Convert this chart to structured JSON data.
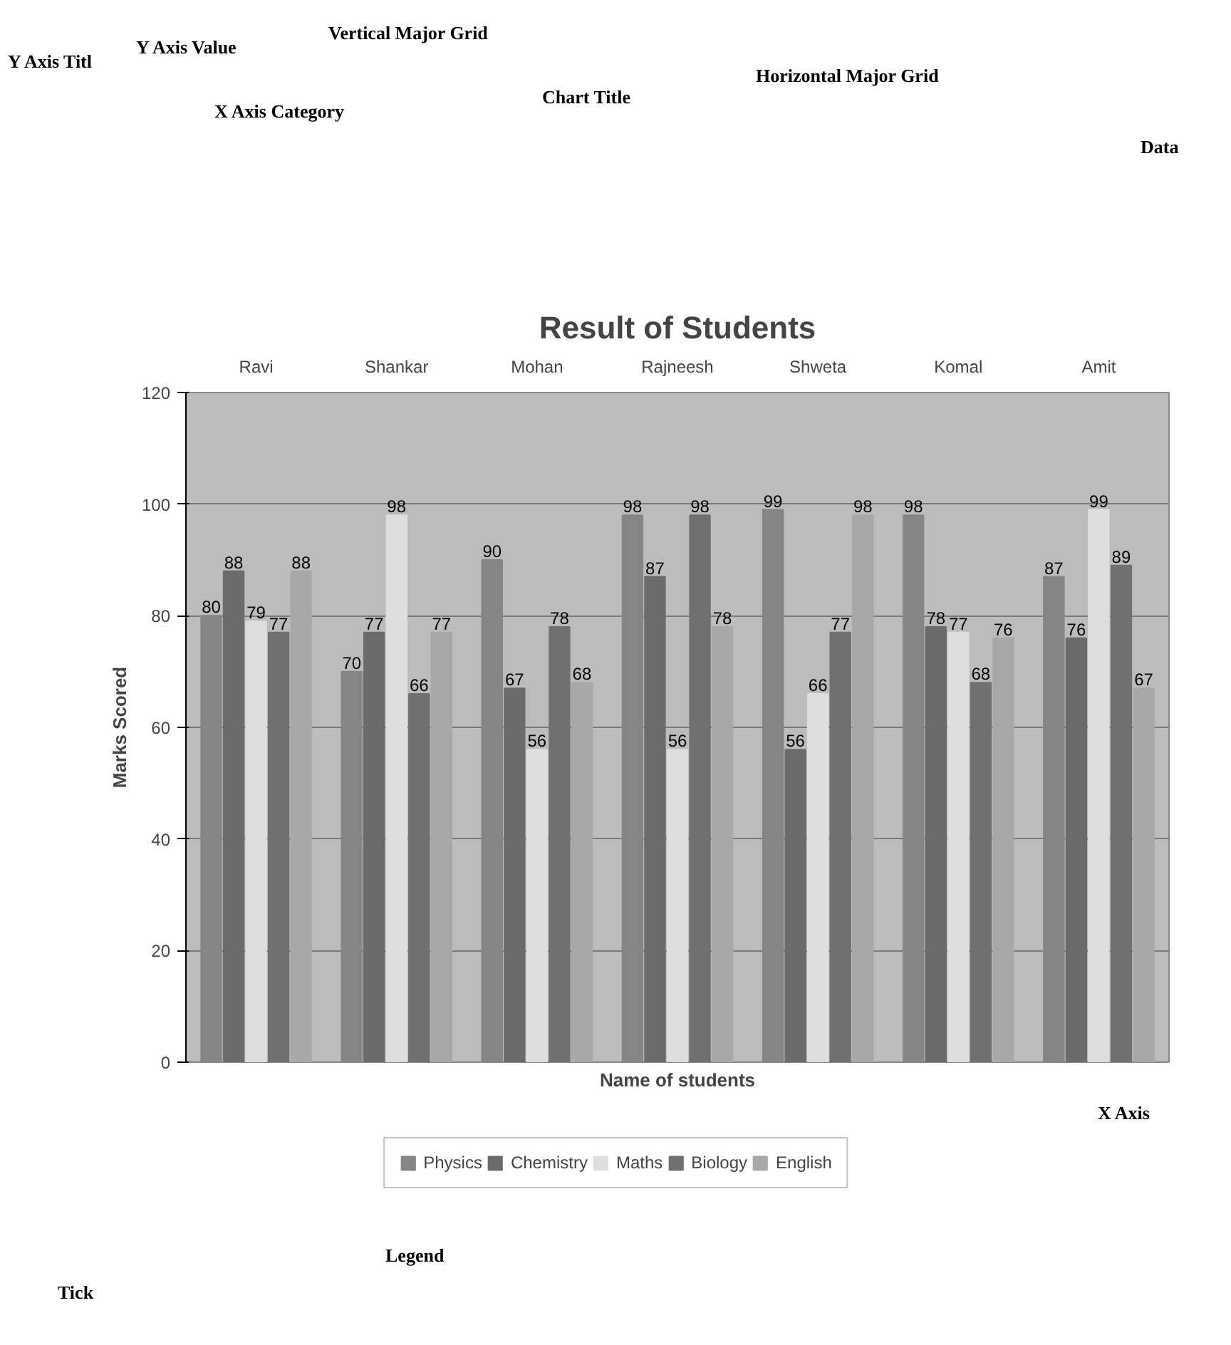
{
  "chart_data": {
    "type": "bar",
    "title": "Result of Students",
    "xlabel": "Name of students",
    "ylabel": "Marks Scored",
    "categories": [
      "Ravi",
      "Shankar",
      "Mohan",
      "Rajneesh",
      "Shweta",
      "Komal",
      "Amit"
    ],
    "series": [
      {
        "name": "Physics",
        "color": "#858585",
        "values": [
          80,
          70,
          90,
          98,
          99,
          98,
          87
        ]
      },
      {
        "name": "Chemistry",
        "color": "#6b6b6b",
        "values": [
          88,
          77,
          67,
          87,
          56,
          78,
          76
        ]
      },
      {
        "name": "Maths",
        "color": "#dedede",
        "values": [
          79,
          98,
          56,
          56,
          66,
          77,
          99
        ]
      },
      {
        "name": "Biology",
        "color": "#707070",
        "values": [
          77,
          66,
          78,
          98,
          77,
          68,
          89
        ]
      },
      {
        "name": "English",
        "color": "#a8a8a8",
        "values": [
          88,
          77,
          68,
          78,
          98,
          76,
          67
        ]
      }
    ],
    "ylim": [
      0,
      120
    ],
    "yticks": [
      0,
      20,
      40,
      60,
      80,
      100,
      120
    ],
    "grid": "y",
    "legend": "bottom",
    "data_labels": true,
    "annotations": [
      "Y Axis Titl",
      "Y Axis Value",
      "X Axis Category",
      "Vertical Major Grid",
      "Chart Title",
      "Horizontal Major Grid",
      "Data",
      "X Axis",
      "Legend",
      "Tick"
    ]
  }
}
